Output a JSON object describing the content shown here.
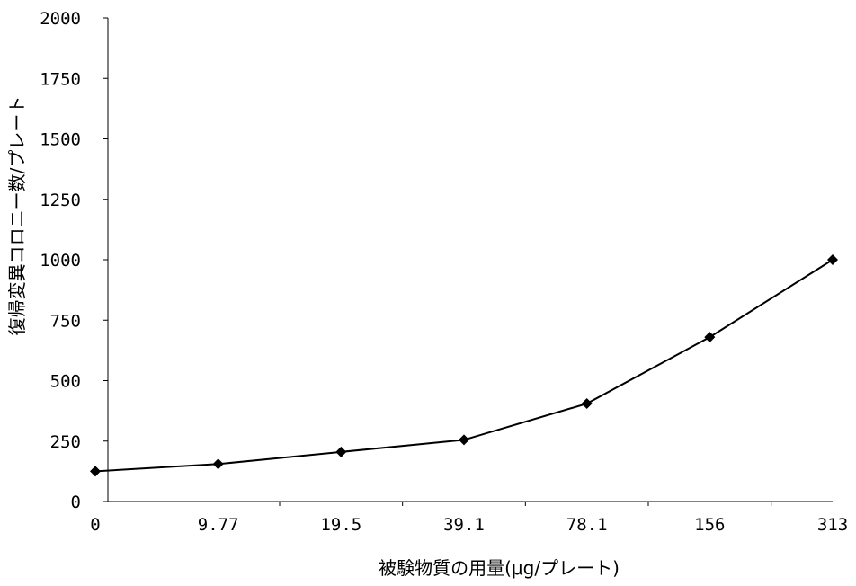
{
  "chart_data": {
    "type": "line",
    "title": "",
    "xlabel": "被験物質の用量(μg/プレート)",
    "ylabel": "復帰変異コロニー数/プレート",
    "categories": [
      "0",
      "9.77",
      "19.5",
      "39.1",
      "78.1",
      "156",
      "313"
    ],
    "series": [
      {
        "values": [
          125,
          155,
          205,
          255,
          405,
          680,
          1000
        ]
      }
    ],
    "ylim": [
      0,
      2000
    ],
    "yticks": [
      0,
      250,
      500,
      750,
      1000,
      1250,
      1500,
      1750,
      2000
    ],
    "grid": false,
    "legend": "none",
    "marker": "diamond",
    "colors": {
      "line": "#000000",
      "marker": "#000000",
      "axis": "#000000"
    }
  }
}
